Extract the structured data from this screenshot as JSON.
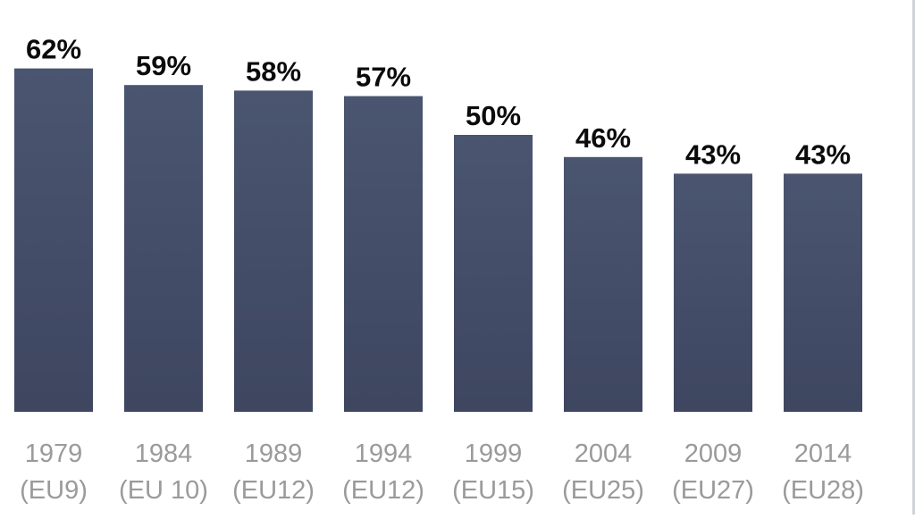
{
  "chart_data": {
    "type": "bar",
    "categories": [
      "1979",
      "1984",
      "1989",
      "1994",
      "1999",
      "2004",
      "2009",
      "2014"
    ],
    "sublabels": [
      "(EU9)",
      "(EU 10)",
      "(EU12)",
      "(EU12)",
      "(EU15)",
      "(EU25)",
      "(EU27)",
      "(EU28)"
    ],
    "values": [
      62,
      59,
      58,
      57,
      50,
      46,
      43,
      43
    ],
    "value_labels": [
      "62%",
      "59%",
      "58%",
      "57%",
      "50%",
      "46%",
      "43%",
      "43%"
    ],
    "title": "",
    "xlabel": "",
    "ylabel": "",
    "ylim": [
      0,
      62
    ],
    "grid": false,
    "legend": "none",
    "colors": {
      "bar_top": "#4a5570",
      "bar_bottom": "#3e4660",
      "value_text": "#0b0b0b",
      "tick_text": "#9a9a9a"
    }
  }
}
